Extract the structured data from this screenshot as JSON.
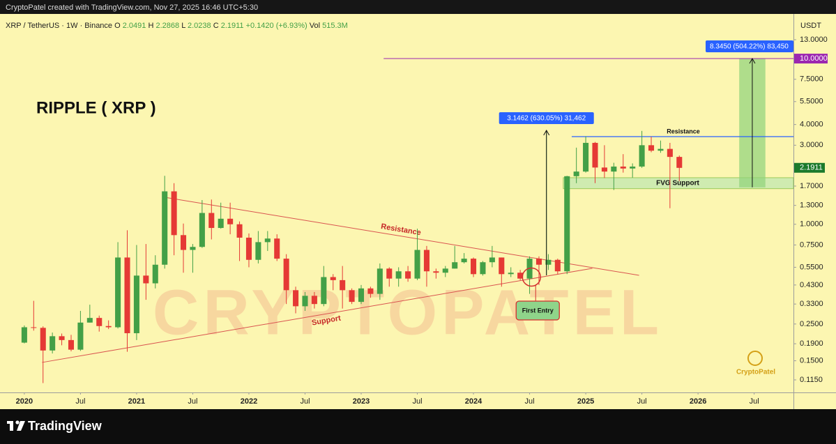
{
  "attribution": "CryptoPatel created with TradingView.com, Nov 27, 2025 16:46 UTC+5:30",
  "footer_brand": "TradingView",
  "chart_data": {
    "type": "candlestick",
    "symbol": "XRP / TetherUS · 1W · Binance",
    "legend": [
      {
        "label": "O",
        "value": 2.0491
      },
      {
        "label": "H",
        "value": 2.2868
      },
      {
        "label": "L",
        "value": 2.0238
      },
      {
        "label": "C",
        "value": 2.1911
      }
    ],
    "change": "+0.1420 (+6.93%)",
    "volume": {
      "label": "Vol",
      "value": "515.3M"
    },
    "currency": "USDT",
    "log_scale": true,
    "grid": false,
    "up_color": "#43a047",
    "down_color": "#e53935",
    "x": [
      0,
      1,
      2,
      3,
      4,
      5,
      6,
      7,
      8,
      9,
      10,
      11,
      12,
      13,
      14,
      15,
      16,
      17,
      18,
      19,
      20,
      21,
      22,
      23,
      24,
      25,
      26,
      27,
      28,
      29,
      30,
      31,
      32,
      33,
      34,
      35,
      36,
      37,
      38,
      39,
      40,
      41,
      42,
      43,
      44,
      45,
      46,
      47,
      48,
      49,
      50,
      51,
      52,
      53,
      54,
      55,
      56,
      57,
      58,
      59,
      60,
      61,
      62,
      63,
      64,
      65,
      66,
      67,
      68,
      69,
      70
    ],
    "open": [
      0.193,
      0.239,
      0.237,
      0.173,
      0.211,
      0.2,
      0.175,
      0.255,
      0.272,
      0.243,
      0.239,
      0.63,
      0.22,
      0.49,
      0.44,
      0.57,
      1.58,
      0.86,
      0.7,
      0.73,
      1.17,
      0.95,
      1.08,
      1.0,
      0.83,
      0.61,
      0.78,
      0.82,
      0.62,
      0.4,
      0.32,
      0.37,
      0.33,
      0.48,
      0.46,
      0.4,
      0.34,
      0.41,
      0.38,
      0.54,
      0.47,
      0.52,
      0.47,
      0.7,
      0.52,
      0.51,
      0.54,
      0.59,
      0.62,
      0.5,
      0.59,
      0.63,
      0.5,
      0.51,
      0.47,
      0.62,
      0.57,
      0.61,
      0.52,
      1.95,
      2.08,
      3.1,
      2.2,
      2.08,
      2.23,
      2.17,
      2.23,
      3.0,
      2.78,
      2.85,
      2.55
    ],
    "high": [
      0.245,
      0.345,
      0.242,
      0.222,
      0.219,
      0.215,
      0.3,
      0.327,
      0.281,
      0.263,
      0.78,
      0.92,
      0.75,
      0.76,
      0.65,
      1.96,
      1.77,
      1.01,
      0.76,
      1.4,
      1.41,
      1.35,
      1.35,
      1.04,
      0.88,
      0.91,
      0.91,
      0.87,
      0.66,
      0.42,
      0.39,
      0.39,
      0.56,
      0.5,
      0.56,
      0.41,
      0.43,
      0.42,
      0.58,
      0.55,
      0.55,
      0.56,
      0.94,
      0.74,
      0.54,
      0.56,
      0.74,
      0.67,
      0.63,
      0.6,
      0.74,
      0.63,
      0.55,
      0.53,
      0.64,
      0.64,
      0.66,
      0.62,
      1.96,
      2.9,
      3.4,
      3.14,
      3.0,
      2.35,
      2.65,
      2.33,
      3.66,
      3.38,
      3.2,
      3.1,
      2.6
    ],
    "low": [
      0.191,
      0.228,
      0.11,
      0.166,
      0.186,
      0.171,
      0.172,
      0.255,
      0.225,
      0.233,
      0.235,
      0.17,
      0.2,
      0.35,
      0.41,
      0.54,
      0.65,
      0.51,
      0.51,
      0.72,
      0.81,
      0.94,
      0.87,
      0.6,
      0.55,
      0.58,
      0.69,
      0.6,
      0.33,
      0.29,
      0.3,
      0.31,
      0.32,
      0.4,
      0.31,
      0.33,
      0.33,
      0.36,
      0.35,
      0.42,
      0.42,
      0.45,
      0.46,
      0.42,
      0.47,
      0.48,
      0.54,
      0.58,
      0.48,
      0.49,
      0.55,
      0.42,
      0.48,
      0.46,
      0.38,
      0.43,
      0.53,
      0.5,
      0.5,
      1.77,
      2.05,
      1.77,
      1.9,
      1.61,
      2.05,
      1.91,
      2.19,
      2.72,
      2.7,
      1.25,
      1.82
    ],
    "close": [
      0.239,
      0.237,
      0.173,
      0.211,
      0.2,
      0.175,
      0.255,
      0.272,
      0.243,
      0.239,
      0.63,
      0.22,
      0.49,
      0.44,
      0.57,
      1.58,
      0.86,
      0.7,
      0.73,
      1.17,
      0.95,
      1.08,
      1.0,
      0.83,
      0.61,
      0.78,
      0.82,
      0.62,
      0.4,
      0.32,
      0.37,
      0.33,
      0.48,
      0.46,
      0.4,
      0.34,
      0.41,
      0.38,
      0.54,
      0.47,
      0.52,
      0.47,
      0.7,
      0.52,
      0.51,
      0.54,
      0.59,
      0.62,
      0.5,
      0.59,
      0.63,
      0.5,
      0.51,
      0.47,
      0.62,
      0.57,
      0.61,
      0.52,
      1.95,
      2.08,
      3.1,
      2.2,
      2.08,
      2.23,
      2.17,
      2.23,
      3.0,
      2.78,
      2.85,
      2.55,
      2.19
    ],
    "xlim": [
      -2.6,
      82.2
    ],
    "xticks": [
      {
        "value": 0,
        "label": "2020"
      },
      {
        "value": 6,
        "label": "Jul"
      },
      {
        "value": 12,
        "label": "2021"
      },
      {
        "value": 18,
        "label": "Jul"
      },
      {
        "value": 24,
        "label": "2022"
      },
      {
        "value": 30,
        "label": "Jul"
      },
      {
        "value": 36,
        "label": "2023"
      },
      {
        "value": 42,
        "label": "Jul"
      },
      {
        "value": 48,
        "label": "2024"
      },
      {
        "value": 54,
        "label": "Jul"
      },
      {
        "value": 60,
        "label": "2025"
      },
      {
        "value": 66,
        "label": "Jul"
      },
      {
        "value": 72,
        "label": "2026"
      },
      {
        "value": 78,
        "label": "Jul"
      }
    ],
    "ylim": [
      0.0966,
      18.6
    ],
    "yticks": [
      {
        "value": 0.115,
        "label": "0.1150"
      },
      {
        "value": 0.15,
        "label": "0.1500"
      },
      {
        "value": 0.19,
        "label": "0.1900"
      },
      {
        "value": 0.25,
        "label": "0.2500"
      },
      {
        "value": 0.33,
        "label": "0.3300"
      },
      {
        "value": 0.43,
        "label": "0.4300"
      },
      {
        "value": 0.55,
        "label": "0.5500"
      },
      {
        "value": 0.75,
        "label": "0.7500"
      },
      {
        "value": 1,
        "label": "1.0000"
      },
      {
        "value": 1.3,
        "label": "1.3000"
      },
      {
        "value": 1.7,
        "label": "1.7000"
      },
      {
        "value": 3,
        "label": "3.0000"
      },
      {
        "value": 4,
        "label": "4.0000"
      },
      {
        "value": 5.5,
        "label": "5.5000"
      },
      {
        "value": 7.5,
        "label": "7.5000"
      },
      {
        "value": 13,
        "label": "13.0000"
      }
    ],
    "annotations": {
      "title": "RIPPLE ( XRP )",
      "watermark": "CRYPTOPATEL",
      "logo": "CryptoPatel",
      "target_level": {
        "value": 10,
        "label": "10.0000",
        "from": 38.4,
        "color": "#9c27b0"
      },
      "resistance_trend": {
        "label": "Resistance",
        "from": [
          15,
          1.455
        ],
        "to": [
          65.7,
          0.492
        ]
      },
      "support_trend": {
        "label": "Support",
        "from": [
          1.9,
          0.1466
        ],
        "to": [
          60.7,
          0.542
        ]
      },
      "first_entry": {
        "label": "First Entry",
        "x": 54.2,
        "y": 0.48
      },
      "move_1": {
        "label": "3.1462 (630.05%) 31,462",
        "x": 55.8,
        "from": 0.492,
        "to": 3.69
      },
      "move_2": {
        "label": "8.3450 (504.22%) 83,450",
        "x": [
          76.4,
          79.2
        ],
        "from": 1.67,
        "to": 10
      },
      "resistance_level": {
        "label": "Resistance",
        "value": 3.38,
        "from": 58.5
      },
      "fvg_zone": {
        "label": "FVG Support",
        "low": 1.64,
        "high": 1.91,
        "from": 57.6
      }
    }
  }
}
